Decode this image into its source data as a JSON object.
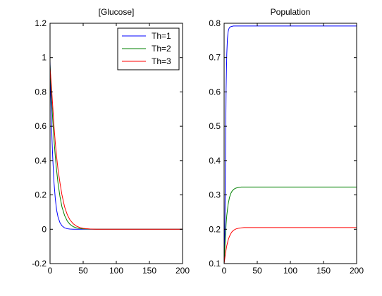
{
  "chart_data": [
    {
      "type": "line",
      "title": "[Glucose]",
      "xlabel": "",
      "ylabel": "",
      "xlim": [
        0,
        200
      ],
      "ylim": [
        -0.2,
        1.2
      ],
      "xticks": [
        0,
        50,
        100,
        150,
        200
      ],
      "yticks": [
        -0.2,
        0,
        0.2,
        0.4,
        0.6,
        0.8,
        1,
        1.2
      ],
      "xtick_labels": [
        "0",
        "50",
        "100",
        "150",
        "200"
      ],
      "ytick_labels": [
        "-0.2",
        "0",
        "0.2",
        "0.4",
        "0.6",
        "0.8",
        "1",
        "1.2"
      ],
      "grid": false,
      "legend": "top-right",
      "series": [
        {
          "name": "Th=1",
          "color": "#0000ff",
          "x": [
            0,
            1,
            2,
            3,
            4,
            6,
            8,
            10,
            12,
            15,
            18,
            22,
            26,
            30,
            35,
            40,
            50,
            60,
            70,
            80,
            100,
            150,
            200
          ],
          "y": [
            0.98,
            0.8,
            0.65,
            0.52,
            0.42,
            0.27,
            0.175,
            0.11,
            0.072,
            0.038,
            0.02,
            0.008,
            0.003,
            0.0013,
            0.0004,
            0.0001,
            0,
            0,
            0,
            0,
            0,
            0,
            0
          ]
        },
        {
          "name": "Th=2",
          "color": "#008000",
          "x": [
            0,
            2,
            4,
            6,
            8,
            10,
            12,
            15,
            18,
            22,
            26,
            30,
            35,
            40,
            45,
            50,
            60,
            70,
            80,
            100,
            150,
            200
          ],
          "y": [
            0.96,
            0.79,
            0.64,
            0.52,
            0.42,
            0.34,
            0.27,
            0.19,
            0.13,
            0.08,
            0.048,
            0.029,
            0.015,
            0.008,
            0.004,
            0.002,
            0.0005,
            0.0001,
            0,
            0,
            0,
            0
          ]
        },
        {
          "name": "Th=3",
          "color": "#ff0000",
          "x": [
            0,
            2,
            4,
            6,
            8,
            10,
            12,
            15,
            18,
            22,
            26,
            30,
            35,
            40,
            45,
            50,
            55,
            60,
            70,
            80,
            100,
            150,
            200
          ],
          "y": [
            0.94,
            0.84,
            0.72,
            0.6,
            0.5,
            0.42,
            0.35,
            0.27,
            0.2,
            0.13,
            0.085,
            0.055,
            0.032,
            0.018,
            0.01,
            0.0055,
            0.003,
            0.0015,
            0.0004,
            0.0001,
            0,
            0,
            0
          ]
        }
      ]
    },
    {
      "type": "line",
      "title": "Population",
      "xlabel": "",
      "ylabel": "",
      "xlim": [
        0,
        200
      ],
      "ylim": [
        0.1,
        0.8
      ],
      "xticks": [
        0,
        50,
        100,
        150,
        200
      ],
      "yticks": [
        0.1,
        0.2,
        0.3,
        0.4,
        0.5,
        0.6,
        0.7,
        0.8
      ],
      "xtick_labels": [
        "0",
        "50",
        "100",
        "150",
        "200"
      ],
      "ytick_labels": [
        "0.1",
        "0.2",
        "0.3",
        "0.4",
        "0.5",
        "0.6",
        "0.7",
        "0.8"
      ],
      "grid": false,
      "series": [
        {
          "color": "#0000ff",
          "x": [
            0,
            1,
            2,
            3,
            4,
            5,
            6,
            7,
            8,
            9,
            10,
            12,
            14,
            16,
            20,
            30,
            50,
            100,
            150,
            200
          ],
          "y": [
            0.1,
            0.17,
            0.4,
            0.61,
            0.71,
            0.755,
            0.775,
            0.783,
            0.787,
            0.789,
            0.79,
            0.791,
            0.792,
            0.792,
            0.792,
            0.792,
            0.792,
            0.792,
            0.792,
            0.792
          ]
        },
        {
          "color": "#008000",
          "x": [
            0,
            1,
            2,
            3,
            4,
            6,
            8,
            10,
            12,
            15,
            18,
            22,
            26,
            30,
            40,
            60,
            100,
            150,
            200
          ],
          "y": [
            0.1,
            0.14,
            0.18,
            0.215,
            0.24,
            0.272,
            0.292,
            0.304,
            0.311,
            0.317,
            0.32,
            0.322,
            0.323,
            0.323,
            0.323,
            0.323,
            0.323,
            0.323,
            0.323
          ]
        },
        {
          "color": "#ff0000",
          "x": [
            0,
            2,
            4,
            6,
            8,
            10,
            12,
            15,
            18,
            22,
            26,
            30,
            35,
            40,
            50,
            70,
            100,
            150,
            200
          ],
          "y": [
            0.1,
            0.13,
            0.152,
            0.168,
            0.179,
            0.187,
            0.193,
            0.198,
            0.201,
            0.203,
            0.204,
            0.205,
            0.205,
            0.205,
            0.205,
            0.205,
            0.205,
            0.205,
            0.205
          ]
        }
      ]
    }
  ]
}
